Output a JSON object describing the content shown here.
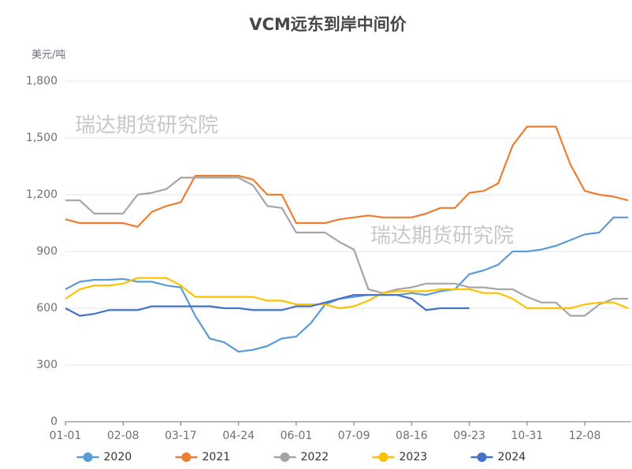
{
  "chart_data": {
    "type": "line",
    "title": "VCM远东到岸中间价",
    "y_label": "美元/吨",
    "watermarks": [
      "瑞达期货研究院",
      "瑞达期货研究院"
    ],
    "categories": [
      "01-01",
      null,
      null,
      null,
      "02-08",
      null,
      null,
      null,
      "03-17",
      null,
      null,
      null,
      "04-24",
      null,
      null,
      null,
      "06-01",
      null,
      null,
      null,
      "07-09",
      null,
      null,
      null,
      "08-16",
      null,
      null,
      null,
      "09-23",
      null,
      null,
      null,
      "10-31",
      null,
      null,
      null,
      "12-08",
      null,
      null,
      null
    ],
    "series": [
      {
        "name": "2020",
        "color": "#5b9bd5",
        "values": [
          700,
          740,
          750,
          750,
          755,
          740,
          740,
          720,
          710,
          560,
          440,
          420,
          370,
          380,
          400,
          440,
          450,
          520,
          620,
          650,
          660,
          670,
          670,
          670,
          680,
          670,
          690,
          700,
          780,
          800,
          830,
          900,
          900,
          910,
          930,
          960,
          990,
          1000,
          1080,
          1080
        ]
      },
      {
        "name": "2021",
        "color": "#ed7d31",
        "values": [
          1070,
          1050,
          1050,
          1050,
          1050,
          1030,
          1110,
          1140,
          1160,
          1300,
          1300,
          1300,
          1300,
          1280,
          1200,
          1200,
          1050,
          1050,
          1050,
          1070,
          1080,
          1090,
          1080,
          1080,
          1080,
          1100,
          1130,
          1130,
          1210,
          1220,
          1260,
          1460,
          1560,
          1560,
          1560,
          1360,
          1220,
          1200,
          1190,
          1170
        ]
      },
      {
        "name": "2022",
        "color": "#a5a5a5",
        "values": [
          1170,
          1170,
          1100,
          1100,
          1100,
          1200,
          1210,
          1230,
          1290,
          1290,
          1290,
          1290,
          1290,
          1250,
          1140,
          1130,
          1000,
          1000,
          1000,
          950,
          910,
          700,
          680,
          700,
          710,
          730,
          730,
          730,
          710,
          710,
          700,
          700,
          660,
          630,
          630,
          560,
          560,
          620,
          650,
          650
        ]
      },
      {
        "name": "2023",
        "color": "#ffc000",
        "values": [
          650,
          700,
          720,
          720,
          730,
          760,
          760,
          760,
          720,
          660,
          660,
          660,
          660,
          660,
          640,
          640,
          620,
          620,
          620,
          600,
          610,
          640,
          680,
          690,
          690,
          690,
          700,
          700,
          700,
          680,
          680,
          650,
          600,
          600,
          600,
          600,
          620,
          630,
          630,
          600
        ]
      },
      {
        "name": "2024",
        "color": "#4472c4",
        "values": [
          600,
          560,
          570,
          590,
          590,
          590,
          610,
          610,
          610,
          610,
          610,
          600,
          600,
          590,
          590,
          590,
          610,
          610,
          630,
          650,
          670,
          670,
          670,
          670,
          650,
          590,
          600,
          600,
          600,
          null,
          null,
          null,
          null,
          null,
          null,
          null,
          null,
          null,
          null,
          null
        ]
      }
    ],
    "ylim": [
      0,
      1800
    ],
    "yticks": [
      0,
      300,
      600,
      900,
      {
        "value": 1200,
        "label": "1,200"
      },
      {
        "value": 1500,
        "label": "1,500"
      },
      {
        "value": 1800,
        "label": "1,800"
      }
    ],
    "grid": true,
    "legend": "bottom"
  }
}
